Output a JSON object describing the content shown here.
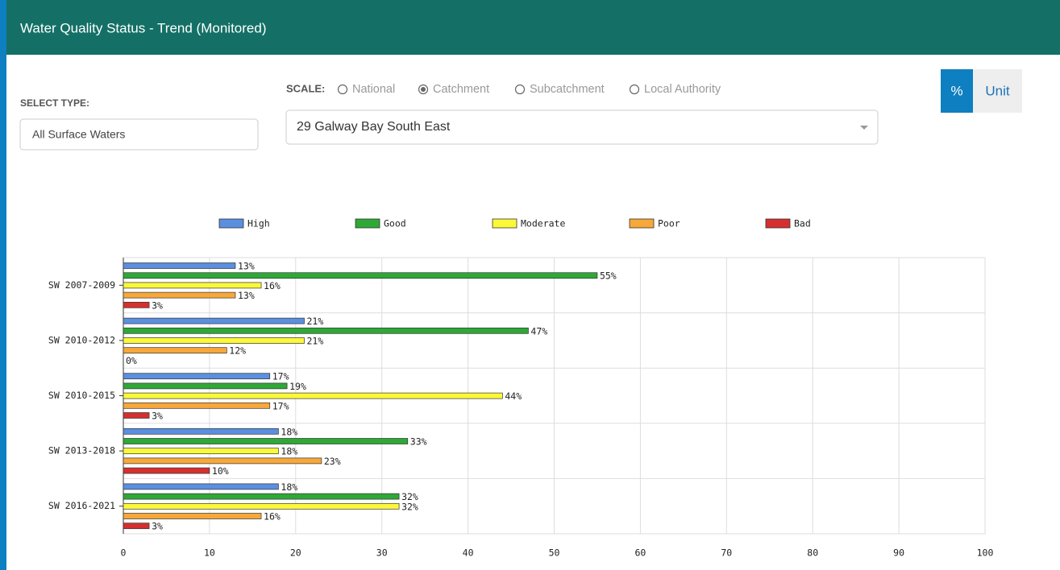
{
  "header": {
    "title": "Water Quality Status - Trend (Monitored)"
  },
  "controls": {
    "select_type_label": "SELECT TYPE:",
    "select_type_value": "All Surface Waters",
    "scale_label": "SCALE:",
    "scale_options": [
      "National",
      "Catchment",
      "Subcatchment",
      "Local Authority"
    ],
    "scale_selected": 1,
    "area_value": "29 Galway Bay South East",
    "toggle": [
      "%",
      "Unit"
    ],
    "toggle_selected": 0
  },
  "chart_data": {
    "type": "bar",
    "orientation": "horizontal",
    "categories": [
      "SW 2007-2009",
      "SW 2010-2012",
      "SW 2010-2015",
      "SW 2013-2018",
      "SW 2016-2021"
    ],
    "series": [
      {
        "name": "High",
        "color": "#5b8fdf",
        "values": [
          13,
          21,
          17,
          18,
          18
        ],
        "value_labels": [
          "13%",
          "21%",
          "17%",
          "18%",
          "18%"
        ]
      },
      {
        "name": "Good",
        "color": "#2ea836",
        "values": [
          55,
          47,
          19,
          33,
          32
        ],
        "value_labels": [
          "55%",
          "47%",
          "19%",
          "33%",
          "32%"
        ]
      },
      {
        "name": "Moderate",
        "color": "#fbf83a",
        "values": [
          16,
          21,
          44,
          18,
          32
        ],
        "value_labels": [
          "16%",
          "21%",
          "44%",
          "18%",
          "32%"
        ]
      },
      {
        "name": "Poor",
        "color": "#f7a83a",
        "values": [
          13,
          12,
          17,
          23,
          16
        ],
        "value_labels": [
          "13%",
          "12%",
          "17%",
          "23%",
          "16%"
        ]
      },
      {
        "name": "Bad",
        "color": "#d62f2f",
        "values": [
          3,
          0,
          3,
          10,
          3
        ],
        "value_labels": [
          "3%",
          "0%",
          "3%",
          "10%",
          "3%"
        ]
      }
    ],
    "xlim": [
      0,
      100
    ],
    "xticks": [
      0,
      10,
      20,
      30,
      40,
      50,
      60,
      70,
      80,
      90,
      100
    ],
    "grid": true
  }
}
